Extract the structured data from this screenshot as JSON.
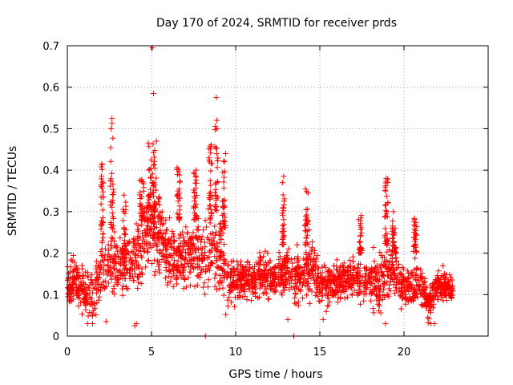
{
  "chart_data": {
    "type": "scatter",
    "title": "Day 170 of 2024, SRMTID for receiver prds",
    "xlabel": "GPS time / hours",
    "ylabel": "SRMTID / TECUs",
    "xlim": [
      0,
      25
    ],
    "ylim": [
      0,
      0.7
    ],
    "xticks": [
      0,
      5,
      10,
      15,
      20
    ],
    "xtick_labels": [
      "0",
      "5",
      "10",
      "15",
      "20"
    ],
    "yticks": [
      0,
      0.1,
      0.2,
      0.3,
      0.4,
      0.5,
      0.6,
      0.7
    ],
    "ytick_labels": [
      "0",
      "0.1",
      "0.2",
      "0.3",
      "0.4",
      "0.5",
      "0.6",
      "0.7"
    ],
    "grid": true,
    "marker": "+",
    "color": "#ff0000",
    "series": [
      {
        "name": "SRMTID",
        "profile": [
          [
            0.0,
            0.12,
            0.04
          ],
          [
            0.5,
            0.13,
            0.05
          ],
          [
            1.0,
            0.1,
            0.05
          ],
          [
            1.5,
            0.1,
            0.05
          ],
          [
            2.0,
            0.15,
            0.06
          ],
          [
            2.5,
            0.18,
            0.07
          ],
          [
            3.0,
            0.18,
            0.06
          ],
          [
            3.5,
            0.17,
            0.06
          ],
          [
            4.0,
            0.18,
            0.07
          ],
          [
            4.5,
            0.24,
            0.08
          ],
          [
            5.0,
            0.27,
            0.08
          ],
          [
            5.5,
            0.25,
            0.08
          ],
          [
            6.0,
            0.19,
            0.06
          ],
          [
            6.5,
            0.18,
            0.06
          ],
          [
            7.0,
            0.19,
            0.06
          ],
          [
            7.5,
            0.2,
            0.07
          ],
          [
            8.0,
            0.19,
            0.07
          ],
          [
            8.5,
            0.21,
            0.08
          ],
          [
            9.0,
            0.2,
            0.08
          ],
          [
            9.5,
            0.14,
            0.05
          ],
          [
            10.0,
            0.13,
            0.04
          ],
          [
            10.5,
            0.14,
            0.04
          ],
          [
            11.0,
            0.13,
            0.04
          ],
          [
            11.5,
            0.15,
            0.04
          ],
          [
            12.0,
            0.14,
            0.04
          ],
          [
            12.5,
            0.14,
            0.04
          ],
          [
            13.0,
            0.16,
            0.05
          ],
          [
            13.5,
            0.14,
            0.05
          ],
          [
            14.0,
            0.15,
            0.05
          ],
          [
            14.5,
            0.18,
            0.06
          ],
          [
            15.0,
            0.13,
            0.04
          ],
          [
            15.5,
            0.12,
            0.04
          ],
          [
            16.0,
            0.13,
            0.04
          ],
          [
            16.5,
            0.14,
            0.04
          ],
          [
            17.0,
            0.15,
            0.05
          ],
          [
            17.5,
            0.13,
            0.04
          ],
          [
            18.0,
            0.14,
            0.05
          ],
          [
            18.5,
            0.12,
            0.05
          ],
          [
            19.0,
            0.16,
            0.06
          ],
          [
            19.5,
            0.15,
            0.05
          ],
          [
            20.0,
            0.12,
            0.04
          ],
          [
            20.5,
            0.12,
            0.04
          ],
          [
            21.0,
            0.12,
            0.04
          ],
          [
            21.5,
            0.08,
            0.03
          ],
          [
            22.0,
            0.12,
            0.03
          ],
          [
            22.5,
            0.12,
            0.03
          ],
          [
            22.9,
            0.11,
            0.03
          ]
        ],
        "bursts": [
          [
            2.0,
            2.15,
            0.22,
            0.42
          ],
          [
            2.55,
            2.75,
            0.25,
            0.52
          ],
          [
            3.3,
            3.5,
            0.2,
            0.34
          ],
          [
            4.3,
            4.6,
            0.28,
            0.38
          ],
          [
            4.8,
            5.1,
            0.3,
            0.47
          ],
          [
            5.1,
            5.3,
            0.3,
            0.45
          ],
          [
            6.5,
            6.7,
            0.28,
            0.41
          ],
          [
            7.5,
            7.7,
            0.28,
            0.4
          ],
          [
            8.4,
            8.6,
            0.28,
            0.47
          ],
          [
            8.75,
            8.95,
            0.3,
            0.57
          ],
          [
            9.2,
            9.4,
            0.26,
            0.44
          ],
          [
            12.75,
            12.9,
            0.22,
            0.38
          ],
          [
            14.1,
            14.3,
            0.22,
            0.36
          ],
          [
            17.3,
            17.5,
            0.2,
            0.3
          ],
          [
            18.85,
            19.05,
            0.22,
            0.38
          ],
          [
            19.3,
            19.5,
            0.2,
            0.3
          ],
          [
            20.55,
            20.75,
            0.2,
            0.29
          ]
        ],
        "notable_points": [
          [
            5.05,
            0.695
          ],
          [
            5.12,
            0.585
          ],
          [
            8.85,
            0.575
          ],
          [
            8.9,
            0.5
          ],
          [
            2.65,
            0.525
          ],
          [
            2.6,
            0.5
          ],
          [
            9.4,
            0.44
          ],
          [
            8.2,
            0.0
          ],
          [
            13.45,
            0.0
          ],
          [
            5.3,
            0.47
          ],
          [
            12.85,
            0.385
          ],
          [
            14.15,
            0.355
          ],
          [
            18.95,
            0.38
          ],
          [
            2.05,
            0.415
          ],
          [
            7.65,
            0.4
          ]
        ],
        "lows": [
          [
            1.2,
            0.03
          ],
          [
            1.5,
            0.03
          ],
          [
            2.3,
            0.035
          ],
          [
            4.0,
            0.025
          ],
          [
            4.1,
            0.03
          ],
          [
            18.9,
            0.03
          ],
          [
            21.6,
            0.03
          ],
          [
            21.8,
            0.03
          ],
          [
            13.1,
            0.04
          ],
          [
            15.2,
            0.04
          ]
        ]
      }
    ]
  }
}
